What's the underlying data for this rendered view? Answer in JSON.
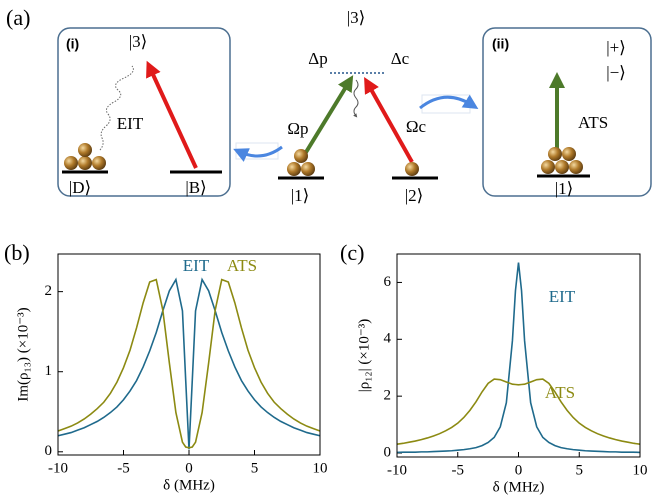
{
  "diagram": {
    "panel_label": "(a)",
    "inset_i": {
      "label": "(i)",
      "upper_state": "|3⟩",
      "process": "EIT",
      "dark_state": "|D⟩",
      "bright_state": "|B⟩"
    },
    "center": {
      "upper_state": "|3⟩",
      "probe_detuning": "Δp",
      "coupling_detuning": "Δc",
      "probe_rabi": "Ωp",
      "coupling_rabi": "Ωc",
      "state_1": "|1⟩",
      "state_2": "|2⟩"
    },
    "inset_ii": {
      "label": "(ii)",
      "plus_state": "|+⟩",
      "minus_state": "|−⟩",
      "process": "ATS",
      "ground_state": "|1⟩"
    }
  },
  "chart_data": [
    {
      "type": "line",
      "panel_label": "(b)",
      "xlabel": "δ (MHz)",
      "ylabel": "Im(ρ₁₃) (×10⁻³)",
      "x": [
        -10,
        -9.5,
        -9,
        -8.5,
        -8,
        -7.5,
        -7,
        -6.5,
        -6,
        -5.5,
        -5,
        -4.5,
        -4,
        -3.5,
        -3,
        -2.5,
        -2,
        -1.5,
        -1,
        -0.5,
        -0.25,
        0,
        0.25,
        0.5,
        1,
        1.5,
        2,
        2.5,
        3,
        3.5,
        4,
        4.5,
        5,
        5.5,
        6,
        6.5,
        7,
        7.5,
        8,
        8.5,
        9,
        9.5,
        10
      ],
      "series": [
        {
          "name": "EIT",
          "color": "#1f6a8c",
          "values": [
            0.2,
            0.22,
            0.24,
            0.27,
            0.3,
            0.34,
            0.38,
            0.43,
            0.49,
            0.56,
            0.65,
            0.76,
            0.89,
            1.06,
            1.26,
            1.49,
            1.76,
            2.01,
            2.15,
            1.76,
            0.89,
            0.03,
            0.89,
            1.76,
            2.15,
            2.01,
            1.76,
            1.49,
            1.26,
            1.06,
            0.89,
            0.76,
            0.65,
            0.56,
            0.49,
            0.43,
            0.38,
            0.34,
            0.3,
            0.27,
            0.24,
            0.22,
            0.2
          ]
        },
        {
          "name": "ATS",
          "color": "#8c8a12",
          "values": [
            0.26,
            0.29,
            0.32,
            0.36,
            0.41,
            0.47,
            0.54,
            0.62,
            0.73,
            0.87,
            1.05,
            1.27,
            1.55,
            1.86,
            2.12,
            2.15,
            1.77,
            1.11,
            0.49,
            0.12,
            0.06,
            0.05,
            0.06,
            0.12,
            0.49,
            1.11,
            1.77,
            2.15,
            2.12,
            1.86,
            1.55,
            1.27,
            1.05,
            0.87,
            0.73,
            0.62,
            0.54,
            0.47,
            0.41,
            0.36,
            0.32,
            0.29,
            0.26
          ]
        }
      ],
      "xlim": [
        -10,
        10
      ],
      "xticks": [
        -10,
        -5,
        0,
        5,
        10
      ],
      "ylim": [
        -0.04,
        2.47
      ],
      "yticks": [
        0,
        1,
        2
      ]
    },
    {
      "type": "line",
      "panel_label": "(c)",
      "xlabel": "δ (MHz)",
      "ylabel": "|ρ₁₂| (×10⁻³)",
      "x": [
        -10,
        -9.5,
        -9,
        -8.5,
        -8,
        -7.5,
        -7,
        -6.5,
        -6,
        -5.5,
        -5,
        -4.5,
        -4,
        -3.5,
        -3,
        -2.5,
        -2,
        -1.5,
        -1,
        -0.5,
        -0.25,
        0,
        0.25,
        0.5,
        1,
        1.5,
        2,
        2.5,
        3,
        3.5,
        4,
        4.5,
        5,
        5.5,
        6,
        6.5,
        7,
        7.5,
        8,
        8.5,
        9,
        9.5,
        10
      ],
      "series": [
        {
          "name": "EIT",
          "color": "#1f6a8c",
          "values": [
            0.02,
            0.03,
            0.03,
            0.03,
            0.04,
            0.04,
            0.05,
            0.06,
            0.07,
            0.08,
            0.1,
            0.12,
            0.15,
            0.19,
            0.26,
            0.37,
            0.55,
            0.92,
            1.77,
            3.95,
            5.71,
            6.7,
            5.71,
            3.95,
            1.77,
            0.92,
            0.55,
            0.37,
            0.26,
            0.19,
            0.15,
            0.12,
            0.1,
            0.08,
            0.07,
            0.06,
            0.05,
            0.04,
            0.04,
            0.03,
            0.03,
            0.03,
            0.02
          ]
        },
        {
          "name": "ATS",
          "color": "#8c8a12",
          "values": [
            0.31,
            0.34,
            0.38,
            0.42,
            0.47,
            0.53,
            0.6,
            0.68,
            0.78,
            0.9,
            1.05,
            1.25,
            1.5,
            1.8,
            2.15,
            2.45,
            2.6,
            2.58,
            2.5,
            2.42,
            2.41,
            2.4,
            2.41,
            2.42,
            2.5,
            2.58,
            2.6,
            2.45,
            2.15,
            1.8,
            1.5,
            1.25,
            1.05,
            0.9,
            0.78,
            0.68,
            0.6,
            0.53,
            0.47,
            0.42,
            0.38,
            0.34,
            0.31
          ]
        }
      ],
      "xlim": [
        -10,
        10
      ],
      "xticks": [
        -10,
        -5,
        0,
        5,
        10
      ],
      "ylim": [
        -0.14,
        7.0
      ],
      "yticks": [
        0,
        2,
        4,
        6
      ]
    }
  ]
}
